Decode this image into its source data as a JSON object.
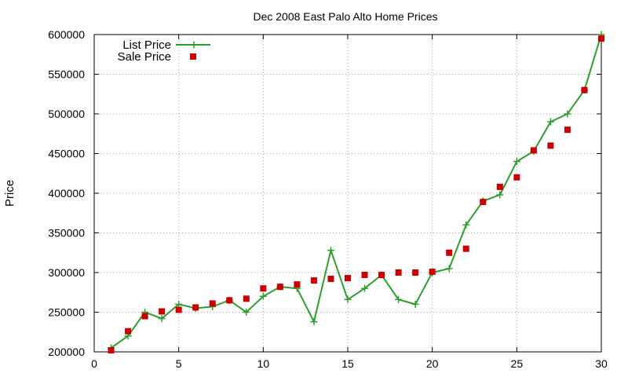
{
  "chart_data": {
    "type": "line",
    "title": "Dec 2008 East Palo Alto Home Prices",
    "xlabel": "",
    "ylabel": "Price",
    "xlim": [
      0,
      30
    ],
    "ylim": [
      200000,
      600000
    ],
    "xticks": [
      0,
      5,
      10,
      15,
      20,
      25,
      30
    ],
    "yticks": [
      200000,
      250000,
      300000,
      350000,
      400000,
      450000,
      500000,
      550000,
      600000
    ],
    "grid": true,
    "legend_position": "top-left",
    "series": [
      {
        "name": "List Price",
        "style": "line-plus",
        "color": "#2ca02c",
        "x": [
          1,
          2,
          3,
          4,
          5,
          6,
          7,
          8,
          9,
          10,
          11,
          12,
          13,
          14,
          15,
          16,
          17,
          18,
          19,
          20,
          21,
          22,
          23,
          24,
          25,
          26,
          27,
          28,
          29,
          30
        ],
        "values": [
          205000,
          220000,
          250000,
          242000,
          260000,
          255000,
          257000,
          265000,
          250000,
          270000,
          282000,
          280000,
          238000,
          328000,
          266000,
          280000,
          297000,
          266000,
          260000,
          300000,
          305000,
          360000,
          390000,
          398000,
          440000,
          453000,
          490000,
          500000,
          530000,
          600000
        ]
      },
      {
        "name": "Sale Price",
        "style": "square",
        "color": "#cc0000",
        "x": [
          1,
          2,
          3,
          4,
          5,
          6,
          7,
          8,
          9,
          10,
          11,
          12,
          13,
          14,
          15,
          16,
          17,
          18,
          19,
          20,
          21,
          22,
          23,
          24,
          25,
          26,
          27,
          28,
          29,
          30
        ],
        "values": [
          202000,
          226000,
          245000,
          251000,
          253000,
          256000,
          261000,
          265000,
          267000,
          280000,
          282000,
          285000,
          290000,
          292000,
          293000,
          297000,
          297000,
          300000,
          300000,
          301000,
          325000,
          330000,
          389000,
          408000,
          420000,
          454000,
          460000,
          480000,
          530000,
          595000
        ]
      }
    ]
  }
}
